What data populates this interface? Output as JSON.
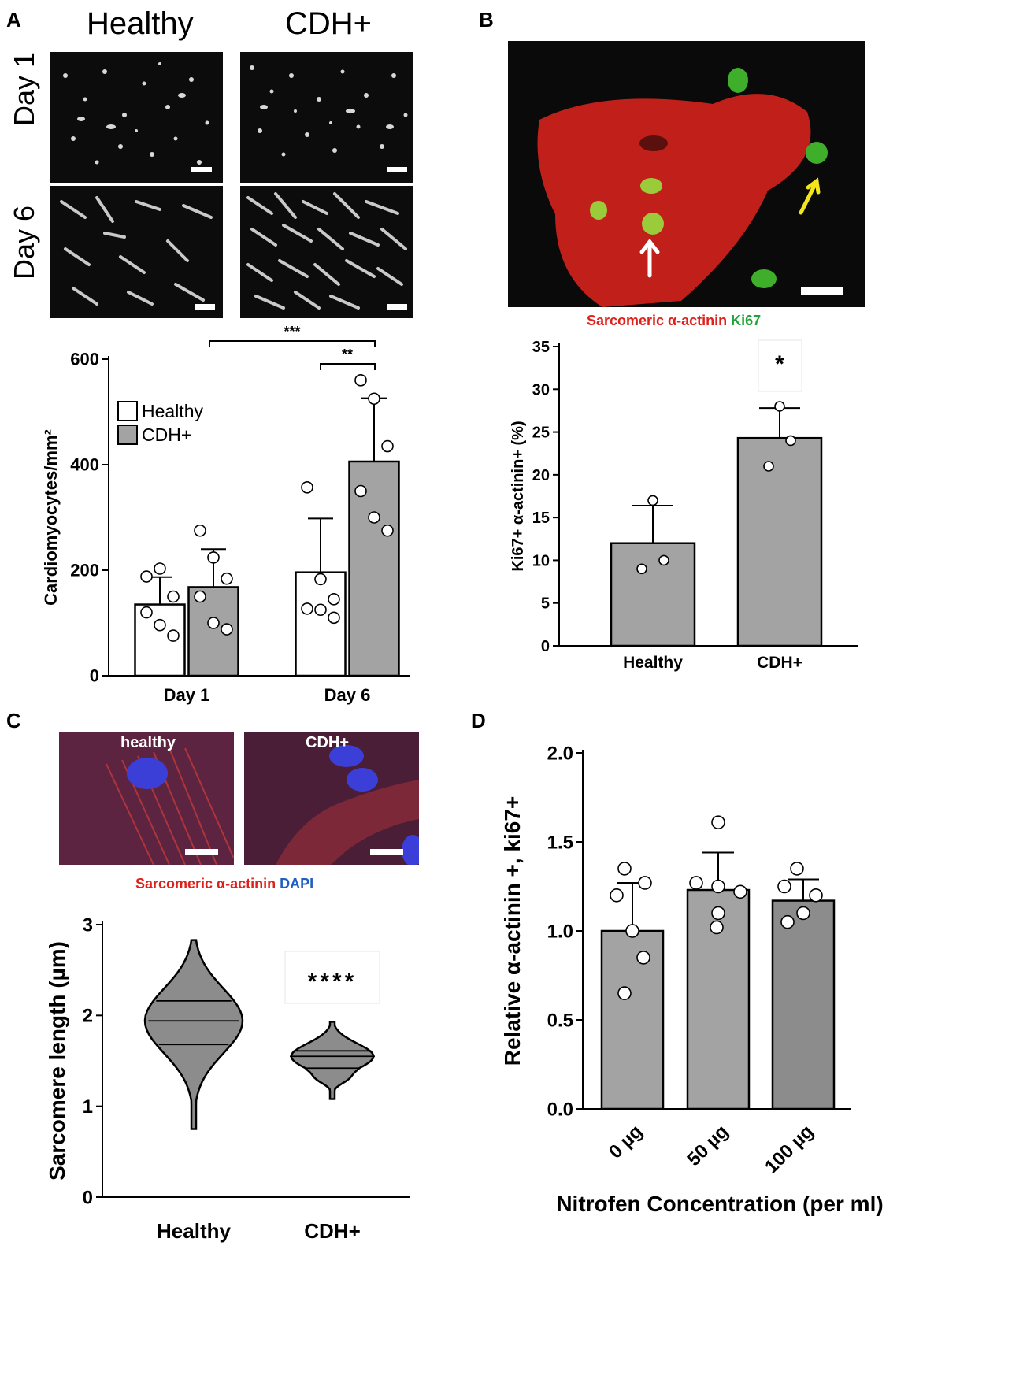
{
  "panels": {
    "A": "A",
    "B": "B",
    "C": "C",
    "D": "D"
  },
  "panelA": {
    "col_headers": [
      "Healthy",
      "CDH+"
    ],
    "row_labels": [
      "Day 1",
      "Day 6"
    ]
  },
  "panelB": {
    "legend_red": "Sarcomeric α-actinin",
    "legend_green": "Ki67"
  },
  "panelC": {
    "img_labels": [
      "healthy",
      "CDH+"
    ],
    "legend_red": "Sarcomeric α-actinin",
    "legend_blue": "DAPI"
  },
  "colors": {
    "bar_gray": "#a3a3a3",
    "bar_gray_dark": "#8c8c8c",
    "violin": "#8c8c8c",
    "red_text": "#e0201b",
    "green_text": "#22a33a",
    "blue_text": "#1f5fbf"
  },
  "chart_data": [
    {
      "id": "A",
      "type": "bar",
      "categories": [
        "Day 1",
        "Day 6"
      ],
      "series": [
        {
          "name": "Healthy",
          "values": [
            135,
            196
          ],
          "errors": [
            52,
            102
          ],
          "points": [
            [
              188,
              203,
              150,
              120,
              96,
              76
            ],
            [
              357,
              183,
              145,
              127,
              125,
              110
            ]
          ],
          "color": "#ffffff"
        },
        {
          "name": "CDH+",
          "values": [
            168,
            406
          ],
          "errors": [
            72,
            120
          ],
          "points": [
            [
              275,
              224,
              184,
              150,
              100,
              88
            ],
            [
              560,
              525,
              435,
              350,
              300,
              275
            ]
          ],
          "color": "#a3a3a3"
        }
      ],
      "ylabel": "Cardiomyocytes/mm²",
      "ylim": [
        0,
        600
      ],
      "yticks": [
        "0",
        "200",
        "400",
        "600"
      ],
      "legend_position": "top-left",
      "significance": [
        "***",
        "**"
      ]
    },
    {
      "id": "B",
      "type": "bar",
      "categories": [
        "Healthy",
        "CDH+"
      ],
      "values": [
        12,
        24.3
      ],
      "errors": [
        4.4,
        3.5
      ],
      "points": [
        [
          17,
          10,
          9
        ],
        [
          28,
          24,
          21
        ]
      ],
      "ylabel": "Ki67+ α-actinin+ (%)",
      "ylim": [
        0,
        35
      ],
      "yticks": [
        "0",
        "5",
        "10",
        "15",
        "20",
        "25",
        "30",
        "35"
      ],
      "significance": "*"
    },
    {
      "id": "C",
      "type": "violin",
      "categories": [
        "Healthy",
        "CDH+"
      ],
      "quartiles": [
        [
          1.68,
          1.94,
          2.16
        ],
        [
          1.42,
          1.55,
          1.61
        ]
      ],
      "range": [
        [
          0.75,
          2.83
        ],
        [
          1.08,
          1.93
        ]
      ],
      "ylabel": "Sarcomere length (µm)",
      "ylim": [
        0,
        3
      ],
      "yticks": [
        "0",
        "1",
        "2",
        "3"
      ],
      "significance": "****"
    },
    {
      "id": "D",
      "type": "bar",
      "categories": [
        "0 µg",
        "50 µg",
        "100 µg"
      ],
      "values": [
        1.0,
        1.23,
        1.17
      ],
      "errors": [
        0.27,
        0.21,
        0.12
      ],
      "points": [
        [
          1.35,
          1.27,
          1.2,
          1.0,
          0.85,
          0.65
        ],
        [
          1.61,
          1.27,
          1.25,
          1.22,
          1.1,
          1.02
        ],
        [
          1.35,
          1.25,
          1.2,
          1.1,
          1.05
        ]
      ],
      "ylabel": "Relative α-actinin +, ki67+",
      "xlabel": "Nitrofen Concentration (per ml)",
      "ylim": [
        0,
        2.0
      ],
      "yticks": [
        "0.0",
        "0.5",
        "1.0",
        "1.5",
        "2.0"
      ]
    }
  ]
}
